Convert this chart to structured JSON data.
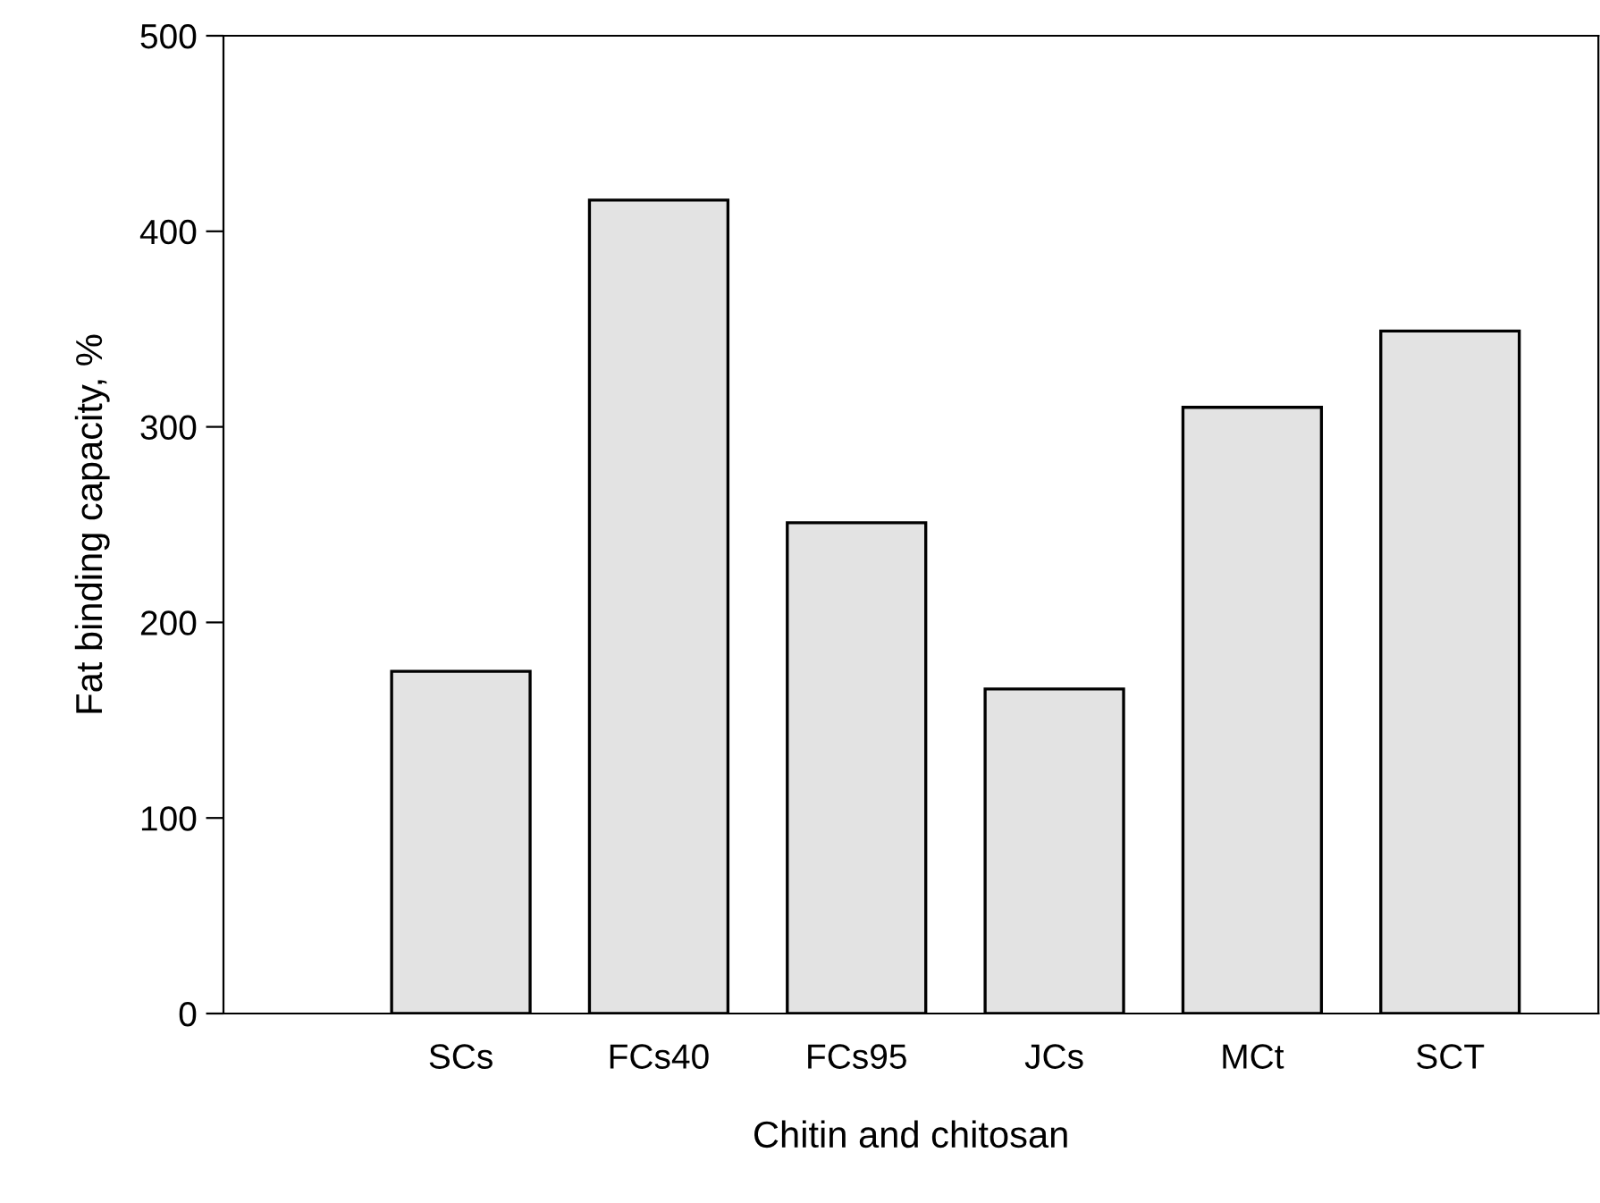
{
  "chart_data": {
    "type": "bar",
    "xlabel": "Chitin and chitosan",
    "ylabel": "Fat binding capacity, %",
    "categories": [
      "SCs",
      "FCs40",
      "FCs95",
      "JCs",
      "MCt",
      "SCT"
    ],
    "values": [
      175,
      416,
      251,
      166,
      310,
      349
    ],
    "color": "#e3e3e3",
    "ylim": [
      0,
      500
    ],
    "yticks": [
      0,
      100,
      200,
      300,
      400,
      500
    ],
    "grid": false
  }
}
